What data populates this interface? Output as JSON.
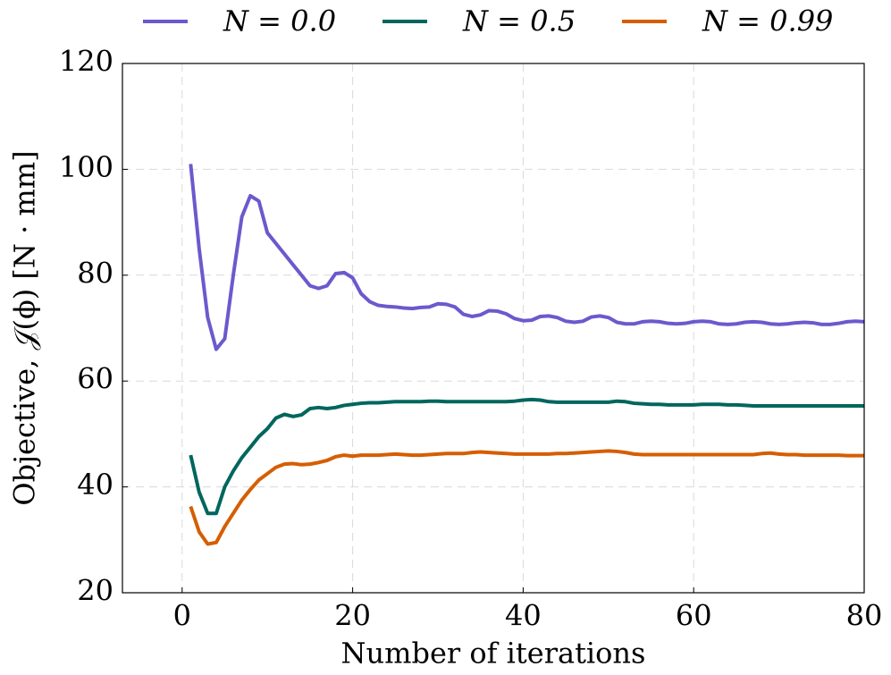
{
  "chart_data": {
    "type": "line",
    "xlabel": "Number of iterations",
    "ylabel": "Objective, 𝒥(ϕ) [N · mm]",
    "x": [
      1,
      2,
      3,
      4,
      5,
      6,
      7,
      8,
      9,
      10,
      11,
      12,
      13,
      14,
      15,
      16,
      17,
      18,
      19,
      20,
      21,
      22,
      23,
      24,
      25,
      26,
      27,
      28,
      29,
      30,
      31,
      32,
      33,
      34,
      35,
      36,
      37,
      38,
      39,
      40,
      41,
      42,
      43,
      44,
      45,
      46,
      47,
      48,
      49,
      50,
      51,
      52,
      53,
      54,
      55,
      56,
      57,
      58,
      59,
      60,
      61,
      62,
      63,
      64,
      65,
      66,
      67,
      68,
      69,
      70,
      71,
      72,
      73,
      74,
      75,
      76,
      77,
      78,
      79,
      80
    ],
    "series": [
      {
        "name": "N = 0.0",
        "color": "#6a5acd",
        "values": [
          101,
          85,
          72,
          66,
          68,
          80,
          91,
          95,
          94,
          88,
          86,
          84,
          82,
          80,
          78,
          77.5,
          78,
          80.3,
          80.5,
          79.5,
          76.5,
          75,
          74.3,
          74.1,
          74,
          73.8,
          73.7,
          73.9,
          74,
          74.6,
          74.5,
          74,
          72.6,
          72.2,
          72.5,
          73.3,
          73.2,
          72.7,
          71.8,
          71.4,
          71.5,
          72.2,
          72.3,
          72,
          71.3,
          71.1,
          71.3,
          72.1,
          72.3,
          72,
          71.1,
          70.8,
          70.8,
          71.2,
          71.3,
          71.2,
          70.9,
          70.8,
          70.9,
          71.2,
          71.3,
          71.2,
          70.8,
          70.7,
          70.8,
          71.1,
          71.2,
          71.1,
          70.8,
          70.7,
          70.8,
          71,
          71.1,
          71,
          70.7,
          70.7,
          70.9,
          71.2,
          71.3,
          71.2
        ]
      },
      {
        "name": "N = 0.5",
        "color": "#00665e",
        "values": [
          46,
          39,
          35,
          35,
          40,
          43,
          45.5,
          47.5,
          49.5,
          51,
          53,
          53.7,
          53.3,
          53.6,
          54.8,
          55,
          54.8,
          55,
          55.4,
          55.6,
          55.8,
          55.9,
          55.9,
          56,
          56.1,
          56.1,
          56.1,
          56.1,
          56.2,
          56.2,
          56.1,
          56.1,
          56.1,
          56.1,
          56.1,
          56.1,
          56.1,
          56.1,
          56.2,
          56.4,
          56.5,
          56.4,
          56.1,
          56,
          56,
          56,
          56,
          56,
          56,
          56,
          56.2,
          56.1,
          55.8,
          55.7,
          55.6,
          55.6,
          55.5,
          55.5,
          55.5,
          55.5,
          55.6,
          55.6,
          55.6,
          55.5,
          55.5,
          55.4,
          55.3,
          55.3,
          55.3,
          55.3,
          55.3,
          55.3,
          55.3,
          55.3,
          55.3,
          55.3,
          55.3,
          55.3,
          55.3,
          55.3
        ]
      },
      {
        "name": "N = 0.99",
        "color": "#d55e00",
        "values": [
          36.3,
          31.5,
          29.2,
          29.5,
          32.5,
          35,
          37.5,
          39.5,
          41.3,
          42.5,
          43.7,
          44.3,
          44.4,
          44.2,
          44.3,
          44.6,
          45,
          45.7,
          46,
          45.8,
          46,
          46,
          46,
          46.1,
          46.2,
          46.1,
          46,
          46,
          46.1,
          46.2,
          46.3,
          46.3,
          46.3,
          46.5,
          46.6,
          46.5,
          46.4,
          46.3,
          46.2,
          46.2,
          46.2,
          46.2,
          46.2,
          46.3,
          46.3,
          46.4,
          46.5,
          46.6,
          46.7,
          46.8,
          46.7,
          46.5,
          46.2,
          46.1,
          46.1,
          46.1,
          46.1,
          46.1,
          46.1,
          46.1,
          46.1,
          46.1,
          46.1,
          46.1,
          46.1,
          46.1,
          46.1,
          46.3,
          46.4,
          46.2,
          46.1,
          46.1,
          46,
          46,
          46,
          46,
          46,
          45.9,
          45.9,
          45.9
        ]
      }
    ],
    "xlim": [
      -7,
      80
    ],
    "xticks": [
      0,
      20,
      40,
      60,
      80
    ],
    "ylim": [
      20,
      120
    ],
    "yticks": [
      20,
      40,
      60,
      80,
      100,
      120
    ],
    "grid": true,
    "legend": "top"
  }
}
